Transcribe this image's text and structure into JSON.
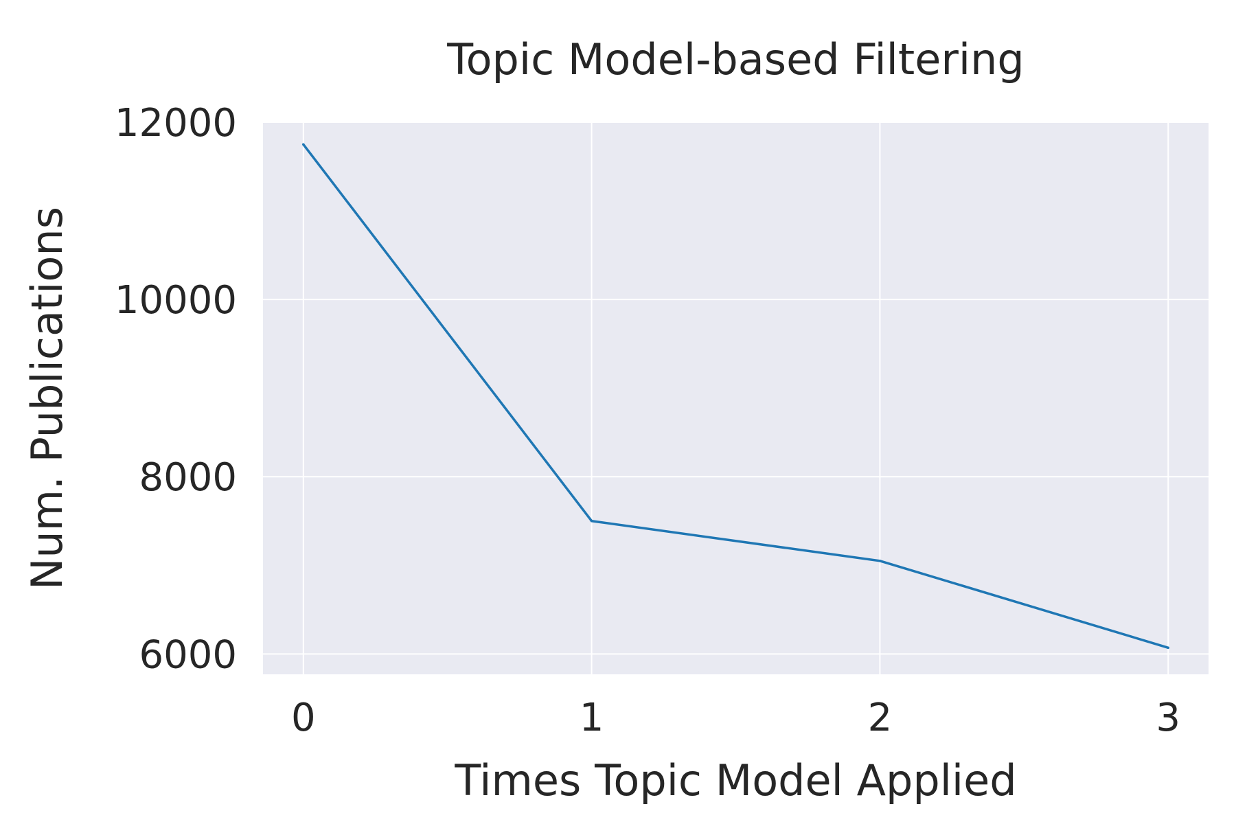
{
  "chart_data": {
    "type": "line",
    "title": "Topic Model-based Filtering",
    "xlabel": "Times Topic Model Applied",
    "ylabel": "Num. Publications",
    "x": [
      0,
      1,
      2,
      3
    ],
    "x_tick_labels": [
      "0",
      "1",
      "2",
      "3"
    ],
    "y_tick_values": [
      6000,
      8000,
      10000,
      12000
    ],
    "y_tick_labels": [
      "6000",
      "8000",
      "10000",
      "12000"
    ],
    "xlim": [
      -0.14,
      3.14
    ],
    "ylim": [
      5770,
      12000
    ],
    "series": [
      {
        "values": [
          11750,
          7500,
          7050,
          6070
        ],
        "color": "#1f77b4"
      }
    ],
    "grid": true,
    "background_color": "#e9eaf2",
    "grid_color": "#ffffff"
  }
}
